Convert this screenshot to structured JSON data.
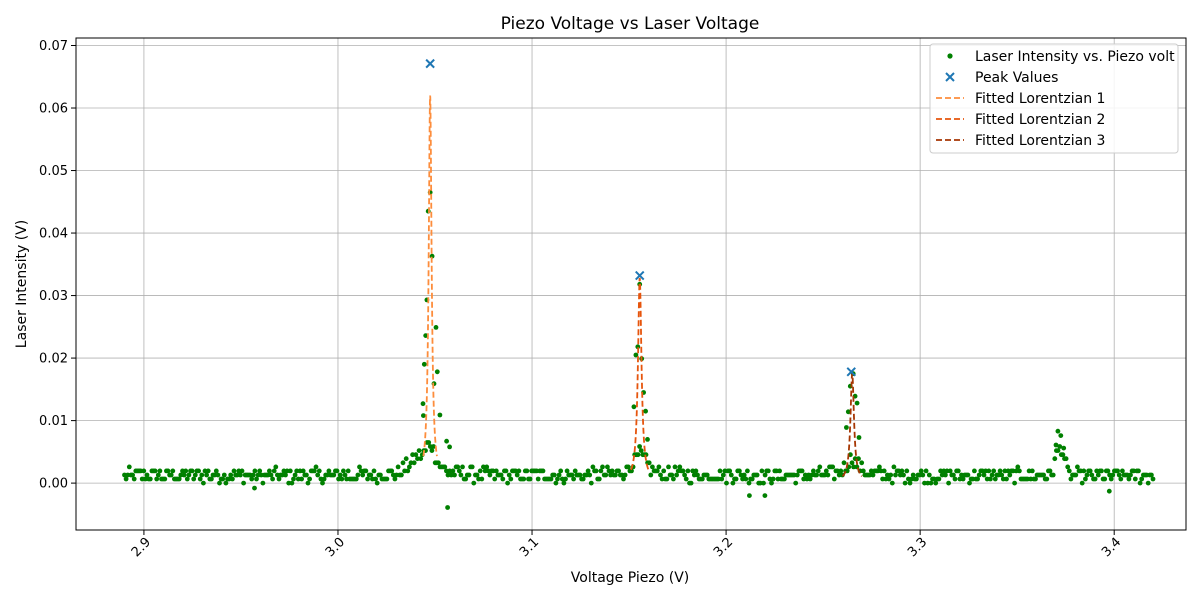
{
  "chart_data": {
    "type": "scatter",
    "title": "Piezo Voltage vs Laser Voltage",
    "xlabel": "Voltage Piezo (V)",
    "ylabel": "Laser Intensity (V)",
    "xlim": [
      2.865,
      3.437
    ],
    "ylim": [
      -0.0075,
      0.0712
    ],
    "xticks": [
      2.9,
      3.0,
      3.1,
      3.2,
      3.3,
      3.4
    ],
    "xtick_labels": [
      "2.9",
      "3.0",
      "3.1",
      "3.2",
      "3.3",
      "3.4"
    ],
    "yticks": [
      0.0,
      0.01,
      0.02,
      0.03,
      0.04,
      0.05,
      0.06,
      0.07
    ],
    "ytick_labels": [
      "0.00",
      "0.01",
      "0.02",
      "0.03",
      "0.04",
      "0.05",
      "0.06",
      "0.07"
    ],
    "grid": true,
    "legend_position": "top-right",
    "colors": {
      "scatter": "#008000",
      "peaks": "#1f77b4",
      "fit1": "#fd8d3c",
      "fit2": "#e6550d",
      "fit3": "#a63603",
      "grid": "#b0b0b0"
    },
    "series": [
      {
        "name": "Laser Intensity vs. Piezo volt",
        "kind": "scatter",
        "x_range": [
          2.89,
          3.42
        ],
        "point_count": 640,
        "baseline": 0.0012,
        "noise": 0.0011,
        "extra_points": [
          {
            "x": 3.0438,
            "y": 0.0127
          },
          {
            "x": 3.044,
            "y": 0.0108
          },
          {
            "x": 3.0445,
            "y": 0.019
          },
          {
            "x": 3.0452,
            "y": 0.0236
          },
          {
            "x": 3.0458,
            "y": 0.0293
          },
          {
            "x": 3.0465,
            "y": 0.0435
          },
          {
            "x": 3.0475,
            "y": 0.0465
          },
          {
            "x": 3.0485,
            "y": 0.0363
          },
          {
            "x": 3.0495,
            "y": 0.0159
          },
          {
            "x": 3.0505,
            "y": 0.0249
          },
          {
            "x": 3.0512,
            "y": 0.0178
          },
          {
            "x": 3.0525,
            "y": 0.0109
          },
          {
            "x": 3.056,
            "y": 0.0067
          },
          {
            "x": 3.0575,
            "y": 0.0058
          },
          {
            "x": 3.0565,
            "y": -0.0039
          },
          {
            "x": 3.1525,
            "y": 0.0122
          },
          {
            "x": 3.1535,
            "y": 0.0205
          },
          {
            "x": 3.1545,
            "y": 0.0218
          },
          {
            "x": 3.1555,
            "y": 0.0318
          },
          {
            "x": 3.1565,
            "y": 0.0199
          },
          {
            "x": 3.1575,
            "y": 0.0145
          },
          {
            "x": 3.1585,
            "y": 0.0115
          },
          {
            "x": 3.1595,
            "y": 0.007
          },
          {
            "x": 3.262,
            "y": 0.0089
          },
          {
            "x": 3.263,
            "y": 0.0114
          },
          {
            "x": 3.264,
            "y": 0.0155
          },
          {
            "x": 3.2655,
            "y": 0.0175
          },
          {
            "x": 3.2665,
            "y": 0.0139
          },
          {
            "x": 3.2675,
            "y": 0.0128
          },
          {
            "x": 3.2685,
            "y": 0.0073
          },
          {
            "x": 3.37,
            "y": 0.0061
          },
          {
            "x": 3.371,
            "y": 0.0083
          },
          {
            "x": 3.3725,
            "y": 0.0076
          },
          {
            "x": 3.374,
            "y": 0.0056
          },
          {
            "x": 3.3975,
            "y": -0.0013
          },
          {
            "x": 3.212,
            "y": -0.002
          },
          {
            "x": 3.22,
            "y": -0.002
          },
          {
            "x": 2.957,
            "y": -0.0008
          }
        ]
      },
      {
        "name": "Peak Values",
        "kind": "marker",
        "points": [
          {
            "x": 3.0475,
            "y": 0.0671
          },
          {
            "x": 3.1555,
            "y": 0.0332
          },
          {
            "x": 3.2645,
            "y": 0.0178
          }
        ]
      },
      {
        "name": "Fitted Lorentzian 1",
        "kind": "fit",
        "center": 3.0475,
        "amplitude": 0.0615,
        "gamma": 0.0009,
        "offset": 0.0005,
        "x_range": [
          3.044,
          3.051
        ]
      },
      {
        "name": "Fitted Lorentzian 2",
        "kind": "fit",
        "center": 3.1555,
        "amplitude": 0.0325,
        "gamma": 0.0011,
        "offset": 0.0003,
        "x_range": [
          3.151,
          3.16
        ]
      },
      {
        "name": "Fitted Lorentzian 3",
        "kind": "fit",
        "center": 3.265,
        "amplitude": 0.0172,
        "gamma": 0.0011,
        "offset": 0.0003,
        "x_range": [
          3.26,
          3.27
        ]
      }
    ]
  }
}
